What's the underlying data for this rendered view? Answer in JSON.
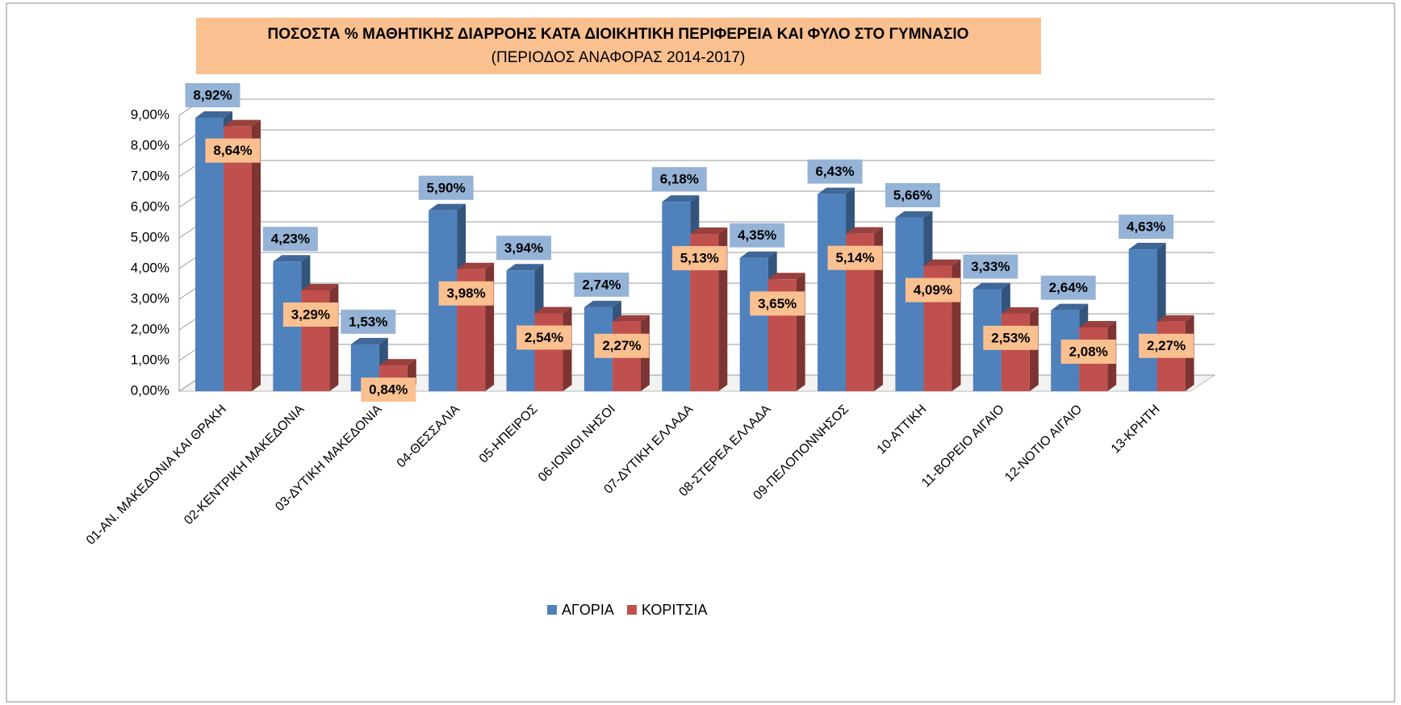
{
  "chart_data": {
    "type": "bar3d",
    "title": "ΠΟΣΟΣΤΑ % ΜΑΘΗΤΙΚΗΣ ΔΙΑΡΡΟΗΣ ΚΑΤΑ ΔΙΟΙΚΗΤΙΚΗ ΠΕΡΙΦΕΡΕΙΑ ΚΑΙ ΦΥΛΟ ΣΤΟ ΓΥΜΝΑΣΙΟ",
    "subtitle": "(ΠΕΡΙΟΔΟΣ ΑΝΑΦΟΡΑΣ 2014-2017)",
    "categories": [
      "01-ΑΝ. ΜΑΚΕΔΟΝΙΑ ΚΑΙ ΘΡΑΚΗ",
      "02-ΚΕΝΤΡΙΚΗ ΜΑΚΕΔΟΝΙΑ",
      "03-ΔΥΤΙΚΗ ΜΑΚΕΔΟΝΙΑ",
      "04-ΘΕΣΣΑΛΙΑ",
      "05-ΗΠΕΙΡΟΣ",
      "06-ΙΟΝΙΟΙ ΝΗΣΟΙ",
      "07-ΔΥΤΙΚΗ ΕΛΛΑΔΑ",
      "08-ΣΤΕΡΕΑ ΕΛΛΑΔΑ",
      "09-ΠΕΛΟΠΟΝΝΗΣΟΣ",
      "10-ΑΤΤΙΚΗ",
      "11-ΒΟΡΕΙΟ ΑΙΓΑΙΟ",
      "12-ΝΟΤΙΟ ΑΙΓΑΙΟ",
      "13-ΚΡΗΤΗ"
    ],
    "series": [
      {
        "name": "ΑΓΟΡΙΑ",
        "color": "#4f81bd",
        "label_box": "#95b3d7",
        "values": [
          8.92,
          4.23,
          1.53,
          5.9,
          3.94,
          2.74,
          6.18,
          4.35,
          6.43,
          5.66,
          3.33,
          2.64,
          4.63
        ],
        "value_labels": [
          "8,92%",
          "4,23%",
          "1,53%",
          "5,90%",
          "3,94%",
          "2,74%",
          "6,18%",
          "4,35%",
          "6,43%",
          "5,66%",
          "3,33%",
          "2,64%",
          "4,63%"
        ]
      },
      {
        "name": "ΚΟΡΙΤΣΙΑ",
        "color": "#c0504d",
        "label_box": "#fac090",
        "values": [
          8.64,
          3.29,
          0.84,
          3.98,
          2.54,
          2.27,
          5.13,
          3.65,
          5.14,
          4.09,
          2.53,
          2.08,
          2.27
        ],
        "value_labels": [
          "8,64%",
          "3,29%",
          "0,84%",
          "3,98%",
          "2,54%",
          "2,27%",
          "5,13%",
          "3,65%",
          "5,14%",
          "4,09%",
          "2,53%",
          "2,08%",
          "2,27%"
        ]
      }
    ],
    "ylim": [
      0,
      9
    ],
    "yticks": [
      {
        "value": 0,
        "label": "0,00%"
      },
      {
        "value": 1,
        "label": "1,00%"
      },
      {
        "value": 2,
        "label": "2,00%"
      },
      {
        "value": 3,
        "label": "3,00%"
      },
      {
        "value": 4,
        "label": "4,00%"
      },
      {
        "value": 5,
        "label": "5,00%"
      },
      {
        "value": 6,
        "label": "6,00%"
      },
      {
        "value": 7,
        "label": "7,00%"
      },
      {
        "value": 8,
        "label": "8,00%"
      },
      {
        "value": 9,
        "label": "9,00%"
      }
    ],
    "grid": true,
    "legend": "bottom"
  }
}
